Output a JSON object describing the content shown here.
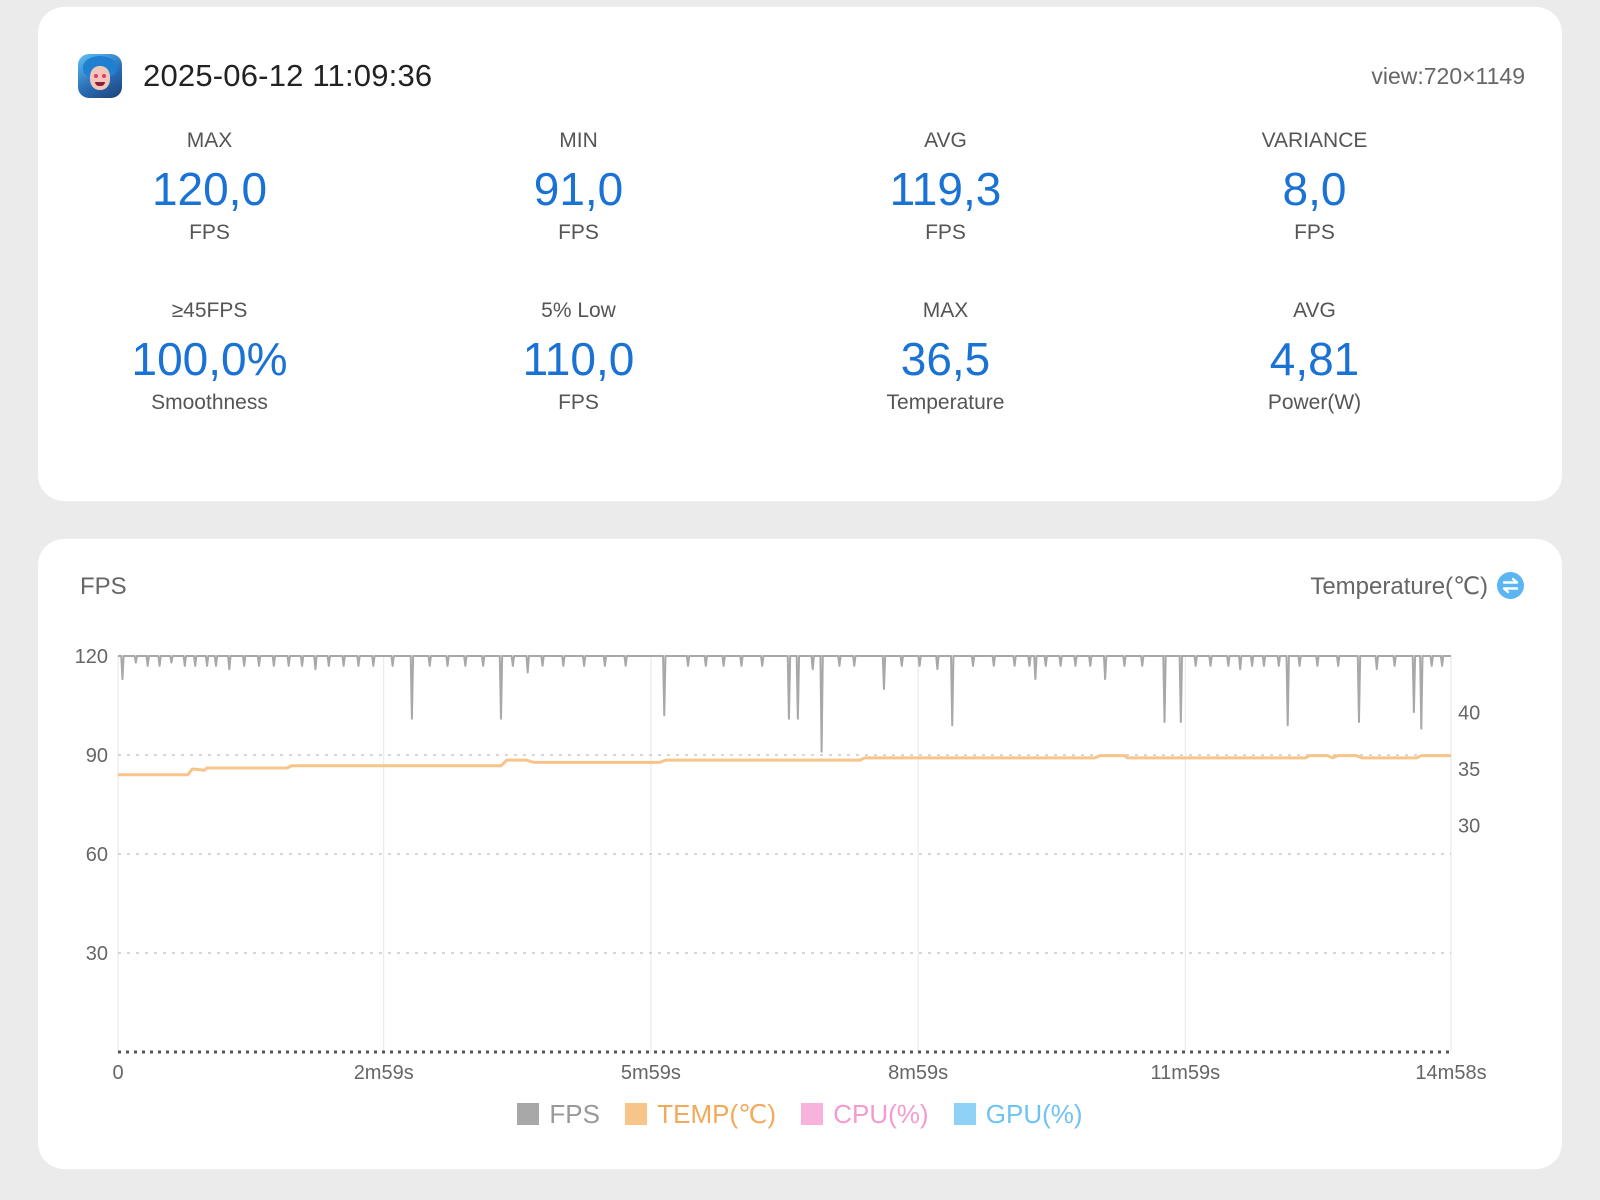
{
  "header": {
    "datetime": "2025-06-12 11:09:36",
    "view_size": "view:720×1149",
    "app_icon": "game-avatar-icon"
  },
  "stats": [
    {
      "label": "MAX",
      "value": "120,0",
      "unit": "FPS"
    },
    {
      "label": "MIN",
      "value": "91,0",
      "unit": "FPS"
    },
    {
      "label": "AVG",
      "value": "119,3",
      "unit": "FPS"
    },
    {
      "label": "VARIANCE",
      "value": "8,0",
      "unit": "FPS"
    },
    {
      "label": "≥45FPS",
      "value": "100,0%",
      "unit": "Smoothness"
    },
    {
      "label": "5% Low",
      "value": "110,0",
      "unit": "FPS"
    },
    {
      "label": "MAX",
      "value": "36,5",
      "unit": "Temperature"
    },
    {
      "label": "AVG",
      "value": "4,81",
      "unit": "Power(W)"
    }
  ],
  "chart_titles": {
    "left": "FPS",
    "right": "Temperature(℃)",
    "swap_icon": "swap-icon"
  },
  "colors": {
    "accent": "#1a72d4",
    "fps": "#a8a8a8",
    "temp": "#f7c48a",
    "cpu": "#f7b3dc",
    "gpu": "#8fd1f7",
    "legend_fps_text": "#999999",
    "legend_temp_text": "#f4a95a",
    "legend_cpu_text": "#f39ad0",
    "legend_gpu_text": "#6fc3f3"
  },
  "chart_data": {
    "type": "line",
    "x_unit": "seconds",
    "x_range": [
      0,
      898
    ],
    "x_ticks": [
      {
        "value": 0,
        "label": "0"
      },
      {
        "value": 179,
        "label": "2m59s"
      },
      {
        "value": 359,
        "label": "5m59s"
      },
      {
        "value": 539,
        "label": "8m59s"
      },
      {
        "value": 719,
        "label": "11m59s"
      },
      {
        "value": 898,
        "label": "14m58s"
      }
    ],
    "y_left": {
      "label": "FPS",
      "range": [
        0,
        120
      ],
      "ticks": [
        30,
        60,
        90,
        120
      ]
    },
    "y_right": {
      "label": "Temperature(℃)",
      "range": [
        10,
        45
      ],
      "ticks": [
        30,
        35,
        40
      ]
    },
    "grid": "dotted horizontal, solid vertical",
    "legend_position": "bottom",
    "series": [
      {
        "name": "FPS",
        "axis": "left",
        "baseline": 120,
        "dips": [
          [
            3,
            113
          ],
          [
            12,
            118
          ],
          [
            20,
            117
          ],
          [
            28,
            117
          ],
          [
            36,
            118
          ],
          [
            45,
            117
          ],
          [
            52,
            117
          ],
          [
            60,
            117
          ],
          [
            66,
            117
          ],
          [
            75,
            116
          ],
          [
            85,
            117
          ],
          [
            95,
            117
          ],
          [
            105,
            117
          ],
          [
            115,
            117
          ],
          [
            124,
            117
          ],
          [
            133,
            116
          ],
          [
            142,
            117
          ],
          [
            152,
            117
          ],
          [
            162,
            117
          ],
          [
            172,
            117
          ],
          [
            185,
            117
          ],
          [
            198,
            101
          ],
          [
            210,
            117
          ],
          [
            222,
            117
          ],
          [
            234,
            117
          ],
          [
            246,
            117
          ],
          [
            258,
            101
          ],
          [
            266,
            117
          ],
          [
            276,
            115
          ],
          [
            286,
            117
          ],
          [
            300,
            117
          ],
          [
            314,
            117
          ],
          [
            328,
            117
          ],
          [
            342,
            117
          ],
          [
            368,
            102
          ],
          [
            384,
            117
          ],
          [
            396,
            117
          ],
          [
            408,
            117
          ],
          [
            420,
            117
          ],
          [
            434,
            117
          ],
          [
            452,
            101
          ],
          [
            458,
            101
          ],
          [
            468,
            116
          ],
          [
            474,
            91
          ],
          [
            486,
            117
          ],
          [
            496,
            117
          ],
          [
            516,
            110
          ],
          [
            528,
            117
          ],
          [
            540,
            117
          ],
          [
            552,
            116
          ],
          [
            562,
            99
          ],
          [
            576,
            117
          ],
          [
            590,
            117
          ],
          [
            604,
            117
          ],
          [
            614,
            117
          ],
          [
            618,
            113
          ],
          [
            625,
            117
          ],
          [
            635,
            117
          ],
          [
            645,
            117
          ],
          [
            655,
            117
          ],
          [
            665,
            113
          ],
          [
            678,
            117
          ],
          [
            690,
            117
          ],
          [
            705,
            100
          ],
          [
            716,
            100
          ],
          [
            726,
            117
          ],
          [
            736,
            117
          ],
          [
            748,
            117
          ],
          [
            756,
            116
          ],
          [
            764,
            117
          ],
          [
            772,
            117
          ],
          [
            782,
            117
          ],
          [
            788,
            99
          ],
          [
            796,
            117
          ],
          [
            808,
            117
          ],
          [
            822,
            117
          ],
          [
            836,
            100
          ],
          [
            848,
            116
          ],
          [
            860,
            117
          ],
          [
            873,
            103
          ],
          [
            878,
            98
          ],
          [
            885,
            117
          ],
          [
            892,
            117
          ]
        ]
      },
      {
        "name": "TEMP(℃)",
        "axis": "right",
        "points": [
          [
            0,
            34.5
          ],
          [
            47,
            34.5
          ],
          [
            50,
            35.0
          ],
          [
            52,
            35.0
          ],
          [
            58,
            34.9
          ],
          [
            60,
            35.1
          ],
          [
            114,
            35.1
          ],
          [
            117,
            35.3
          ],
          [
            225,
            35.3
          ],
          [
            258,
            35.3
          ],
          [
            262,
            35.8
          ],
          [
            275,
            35.8
          ],
          [
            280,
            35.6
          ],
          [
            365,
            35.6
          ],
          [
            369,
            35.8
          ],
          [
            500,
            35.8
          ],
          [
            503,
            36.0
          ],
          [
            658,
            36.0
          ],
          [
            662,
            36.2
          ],
          [
            678,
            36.2
          ],
          [
            680,
            36.0
          ],
          [
            800,
            36.0
          ],
          [
            803,
            36.2
          ],
          [
            815,
            36.2
          ],
          [
            818,
            36.0
          ],
          [
            822,
            36.2
          ],
          [
            834,
            36.2
          ],
          [
            838,
            36.0
          ],
          [
            875,
            36.0
          ],
          [
            878,
            36.2
          ],
          [
            898,
            36.2
          ]
        ]
      },
      {
        "name": "CPU(%)",
        "axis": "left",
        "points": []
      },
      {
        "name": "GPU(%)",
        "axis": "left",
        "points": []
      }
    ]
  }
}
